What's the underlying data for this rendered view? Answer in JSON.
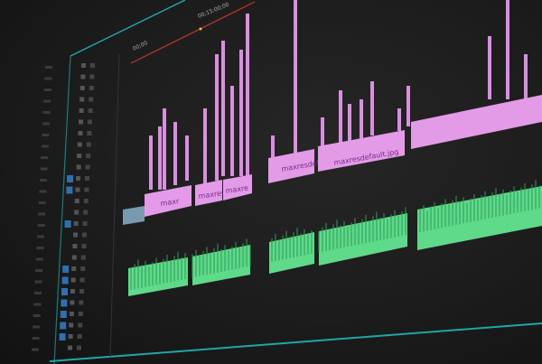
{
  "ruler": {
    "timecode_start": "00;00",
    "timecode_mid": "00;15;00;00"
  },
  "video_clips": [
    {
      "label": "maxr"
    },
    {
      "label": "maxres"
    },
    {
      "label": "maxre"
    },
    {
      "label": "maxresdef"
    },
    {
      "label": "maxresdefault.jpg"
    },
    {
      "label": ""
    }
  ],
  "colors": {
    "video_clip": "#e39be8",
    "audio_clip": "#5fd98a",
    "playhead_line": "#c0392b",
    "panel_border": "#1fa6a8",
    "track_button": "#2f6fb0"
  }
}
